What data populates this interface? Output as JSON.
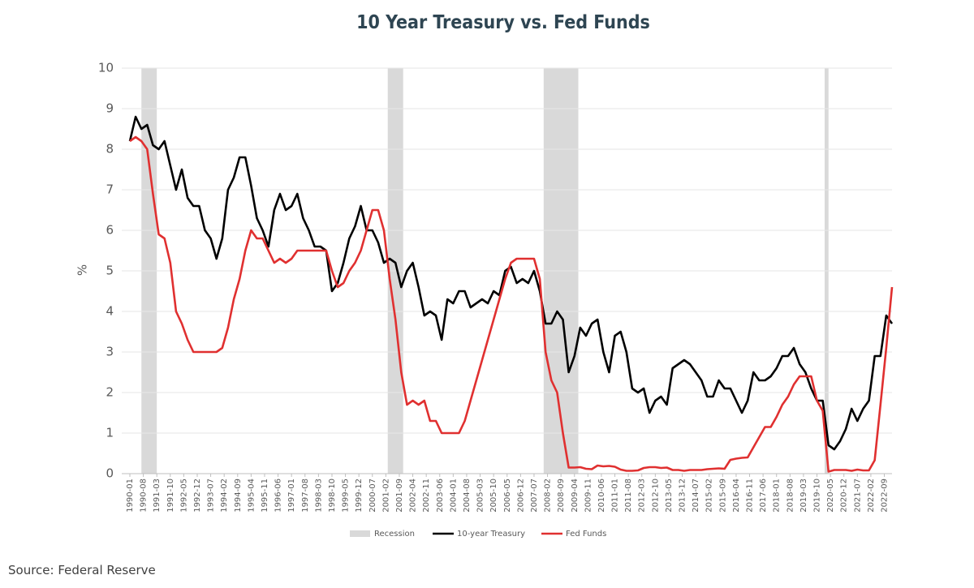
{
  "chart_data": {
    "type": "line",
    "title": "10 Year Treasury vs. Fed Funds",
    "y_label": "%",
    "source": "Source: Federal Reserve",
    "recession_label": "Recession",
    "recession_color": "#d9d9d9",
    "recessions": [
      {
        "start": "1990-07",
        "end": "1991-03"
      },
      {
        "start": "2001-03",
        "end": "2001-11"
      },
      {
        "start": "2007-12",
        "end": "2009-06"
      },
      {
        "start": "2020-02",
        "end": "2020-04"
      }
    ],
    "ylim": [
      0,
      10
    ],
    "yticks": [
      0,
      1,
      2,
      3,
      4,
      5,
      6,
      7,
      8,
      9,
      10
    ],
    "grid": true,
    "xlim": [
      "1990-01",
      "2023-01"
    ],
    "xticks": [
      "1990-01",
      "1990-08",
      "1991-03",
      "1991-10",
      "1992-05",
      "1992-12",
      "1993-07",
      "1994-02",
      "1994-09",
      "1995-04",
      "1995-11",
      "1996-06",
      "1997-01",
      "1997-08",
      "1998-03",
      "1998-10",
      "1999-05",
      "1999-12",
      "2000-07",
      "2001-02",
      "2001-09",
      "2002-04",
      "2002-11",
      "2003-06",
      "2004-01",
      "2004-08",
      "2005-03",
      "2005-10",
      "2006-05",
      "2006-12",
      "2007-07",
      "2008-02",
      "2008-09",
      "2009-04",
      "2009-11",
      "2010-06",
      "2011-01",
      "2011-08",
      "2012-03",
      "2012-10",
      "2013-05",
      "2013-12",
      "2014-07",
      "2015-02",
      "2015-09",
      "2016-04",
      "2016-11",
      "2017-06",
      "2018-01",
      "2018-08",
      "2019-03",
      "2019-10",
      "2020-05",
      "2020-12",
      "2021-07",
      "2022-02",
      "2022-09"
    ],
    "x": [
      "1990-01",
      "1990-04",
      "1990-07",
      "1990-10",
      "1991-01",
      "1991-04",
      "1991-07",
      "1991-10",
      "1992-01",
      "1992-04",
      "1992-07",
      "1992-10",
      "1993-01",
      "1993-04",
      "1993-07",
      "1993-10",
      "1994-01",
      "1994-04",
      "1994-07",
      "1994-10",
      "1995-01",
      "1995-04",
      "1995-07",
      "1995-10",
      "1996-01",
      "1996-04",
      "1996-07",
      "1996-10",
      "1997-01",
      "1997-04",
      "1997-07",
      "1997-10",
      "1998-01",
      "1998-04",
      "1998-07",
      "1998-10",
      "1999-01",
      "1999-04",
      "1999-07",
      "1999-10",
      "2000-01",
      "2000-04",
      "2000-07",
      "2000-10",
      "2001-01",
      "2001-04",
      "2001-07",
      "2001-10",
      "2002-01",
      "2002-04",
      "2002-07",
      "2002-10",
      "2003-01",
      "2003-04",
      "2003-07",
      "2003-10",
      "2004-01",
      "2004-04",
      "2004-07",
      "2004-10",
      "2005-01",
      "2005-04",
      "2005-07",
      "2005-10",
      "2006-01",
      "2006-04",
      "2006-07",
      "2006-10",
      "2007-01",
      "2007-04",
      "2007-07",
      "2007-10",
      "2008-01",
      "2008-04",
      "2008-07",
      "2008-10",
      "2009-01",
      "2009-04",
      "2009-07",
      "2009-10",
      "2010-01",
      "2010-04",
      "2010-07",
      "2010-10",
      "2011-01",
      "2011-04",
      "2011-07",
      "2011-10",
      "2012-01",
      "2012-04",
      "2012-07",
      "2012-10",
      "2013-01",
      "2013-04",
      "2013-07",
      "2013-10",
      "2014-01",
      "2014-04",
      "2014-07",
      "2014-10",
      "2015-01",
      "2015-04",
      "2015-07",
      "2015-10",
      "2016-01",
      "2016-04",
      "2016-07",
      "2016-10",
      "2017-01",
      "2017-04",
      "2017-07",
      "2017-10",
      "2018-01",
      "2018-04",
      "2018-07",
      "2018-10",
      "2019-01",
      "2019-04",
      "2019-07",
      "2019-10",
      "2020-01",
      "2020-04",
      "2020-07",
      "2020-10",
      "2021-01",
      "2021-04",
      "2021-07",
      "2021-10",
      "2022-01",
      "2022-04",
      "2022-07",
      "2022-10",
      "2023-01"
    ],
    "series": [
      {
        "name": "10-year Treasury",
        "color": "#000000",
        "values": [
          8.2,
          8.8,
          8.5,
          8.6,
          8.1,
          8.0,
          8.2,
          7.6,
          7.0,
          7.5,
          6.8,
          6.6,
          6.6,
          6.0,
          5.8,
          5.3,
          5.8,
          7.0,
          7.3,
          7.8,
          7.8,
          7.1,
          6.3,
          6.0,
          5.6,
          6.5,
          6.9,
          6.5,
          6.6,
          6.9,
          6.3,
          6.0,
          5.6,
          5.6,
          5.5,
          4.5,
          4.7,
          5.2,
          5.8,
          6.1,
          6.6,
          6.0,
          6.0,
          5.7,
          5.2,
          5.3,
          5.2,
          4.6,
          5.0,
          5.2,
          4.6,
          3.9,
          4.0,
          3.9,
          3.3,
          4.3,
          4.2,
          4.5,
          4.5,
          4.1,
          4.2,
          4.3,
          4.2,
          4.5,
          4.4,
          5.0,
          5.1,
          4.7,
          4.8,
          4.7,
          5.0,
          4.5,
          3.7,
          3.7,
          4.0,
          3.8,
          2.5,
          2.9,
          3.6,
          3.4,
          3.7,
          3.8,
          3.0,
          2.5,
          3.4,
          3.5,
          3.0,
          2.1,
          2.0,
          2.1,
          1.5,
          1.8,
          1.9,
          1.7,
          2.6,
          2.7,
          2.8,
          2.7,
          2.5,
          2.3,
          1.9,
          1.9,
          2.3,
          2.1,
          2.1,
          1.8,
          1.5,
          1.8,
          2.5,
          2.3,
          2.3,
          2.4,
          2.6,
          2.9,
          2.9,
          3.1,
          2.7,
          2.5,
          2.1,
          1.8,
          1.8,
          0.7,
          0.6,
          0.8,
          1.1,
          1.6,
          1.3,
          1.6,
          1.8,
          2.9,
          2.9,
          3.9,
          3.7
        ]
      },
      {
        "name": "Fed Funds",
        "color": "#e03030",
        "values": [
          8.2,
          8.3,
          8.2,
          8.0,
          6.9,
          5.9,
          5.8,
          5.2,
          4.0,
          3.7,
          3.3,
          3.0,
          3.0,
          3.0,
          3.0,
          3.0,
          3.1,
          3.6,
          4.3,
          4.8,
          5.5,
          6.0,
          5.8,
          5.8,
          5.5,
          5.2,
          5.3,
          5.2,
          5.3,
          5.5,
          5.5,
          5.5,
          5.5,
          5.5,
          5.5,
          5.0,
          4.6,
          4.7,
          5.0,
          5.2,
          5.5,
          6.0,
          6.5,
          6.5,
          6.0,
          4.8,
          3.8,
          2.5,
          1.7,
          1.8,
          1.7,
          1.8,
          1.3,
          1.3,
          1.0,
          1.0,
          1.0,
          1.0,
          1.3,
          1.8,
          2.3,
          2.8,
          3.3,
          3.8,
          4.3,
          4.8,
          5.2,
          5.3,
          5.3,
          5.3,
          5.3,
          4.8,
          3.0,
          2.3,
          2.0,
          1.0,
          0.15,
          0.15,
          0.16,
          0.12,
          0.11,
          0.2,
          0.18,
          0.19,
          0.17,
          0.1,
          0.07,
          0.07,
          0.08,
          0.14,
          0.16,
          0.16,
          0.14,
          0.15,
          0.09,
          0.09,
          0.07,
          0.09,
          0.09,
          0.09,
          0.11,
          0.12,
          0.13,
          0.12,
          0.34,
          0.37,
          0.39,
          0.4,
          0.65,
          0.9,
          1.15,
          1.15,
          1.4,
          1.7,
          1.9,
          2.2,
          2.4,
          2.4,
          2.4,
          1.8,
          1.55,
          0.05,
          0.09,
          0.09,
          0.09,
          0.07,
          0.1,
          0.08,
          0.08,
          0.33,
          1.7,
          3.1,
          4.6
        ]
      }
    ]
  }
}
